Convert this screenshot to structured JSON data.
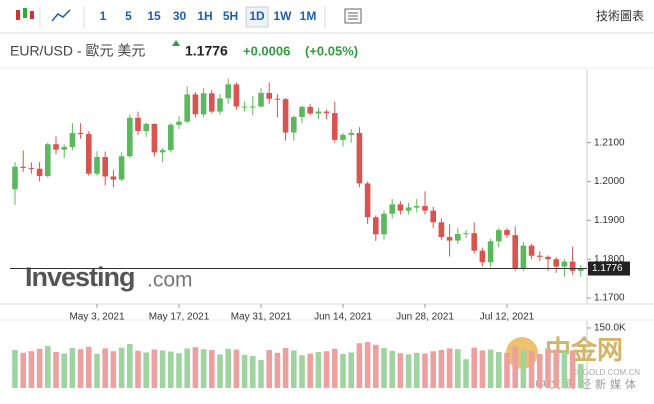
{
  "toolbar": {
    "intervals": [
      "1",
      "5",
      "15",
      "30",
      "1H",
      "5H",
      "1D",
      "1W",
      "1M"
    ],
    "selected": 6,
    "right_link": "技術圖表"
  },
  "header": {
    "title": "EUR/USD - 歐元 美元",
    "price": "1.1776",
    "change": "+0.0006",
    "change_pct": "(+0.05%)"
  },
  "watermarks": {
    "brand": "Investing",
    "brand_suffix": ".com",
    "cn_name": "中金网",
    "cn_url": "CNGOLD.COM.CN",
    "cn_tagline": "中文财经新媒体"
  },
  "chart_data": {
    "type": "candlestick",
    "x": [
      "2021-04-19",
      "2021-04-20",
      "2021-04-21",
      "2021-04-22",
      "2021-04-23",
      "2021-04-26",
      "2021-04-27",
      "2021-04-28",
      "2021-04-29",
      "2021-04-30",
      "2021-05-03",
      "2021-05-04",
      "2021-05-05",
      "2021-05-06",
      "2021-05-07",
      "2021-05-10",
      "2021-05-11",
      "2021-05-12",
      "2021-05-13",
      "2021-05-14",
      "2021-05-17",
      "2021-05-18",
      "2021-05-19",
      "2021-05-20",
      "2021-05-21",
      "2021-05-24",
      "2021-05-25",
      "2021-05-26",
      "2021-05-27",
      "2021-05-28",
      "2021-05-31",
      "2021-06-01",
      "2021-06-02",
      "2021-06-03",
      "2021-06-04",
      "2021-06-07",
      "2021-06-08",
      "2021-06-09",
      "2021-06-10",
      "2021-06-11",
      "2021-06-14",
      "2021-06-15",
      "2021-06-16",
      "2021-06-17",
      "2021-06-18",
      "2021-06-21",
      "2021-06-22",
      "2021-06-23",
      "2021-06-24",
      "2021-06-25",
      "2021-06-28",
      "2021-06-29",
      "2021-06-30",
      "2021-07-01",
      "2021-07-02",
      "2021-07-05",
      "2021-07-06",
      "2021-07-07",
      "2021-07-08",
      "2021-07-09",
      "2021-07-12",
      "2021-07-13",
      "2021-07-14",
      "2021-07-15",
      "2021-07-16",
      "2021-07-19",
      "2021-07-20",
      "2021-07-21",
      "2021-07-22",
      "2021-07-23"
    ],
    "open": [
      1.198,
      1.2038,
      1.2035,
      1.2033,
      1.2014,
      1.2096,
      1.2082,
      1.2089,
      1.2125,
      1.2122,
      1.202,
      1.2063,
      1.2013,
      1.2005,
      1.2065,
      1.2164,
      1.213,
      1.2148,
      1.2075,
      1.2081,
      1.2146,
      1.2154,
      1.2224,
      1.2173,
      1.2227,
      1.218,
      1.2214,
      1.225,
      1.2193,
      1.2193,
      1.2193,
      1.2228,
      1.2213,
      1.2212,
      1.2126,
      1.2166,
      1.2192,
      1.2175,
      1.218,
      1.2176,
      1.2107,
      1.212,
      1.2125,
      1.1995,
      1.1908,
      1.1864,
      1.1917,
      1.1941,
      1.1925,
      1.1933,
      1.1937,
      1.1925,
      1.1895,
      1.1857,
      1.1848,
      1.1865,
      1.1867,
      1.1822,
      1.1792,
      1.1846,
      1.1875,
      1.1862,
      1.1775,
      1.1835,
      1.1809,
      1.1806,
      1.18,
      1.1781,
      1.1794,
      1.177
    ],
    "high": [
      1.205,
      1.208,
      1.2049,
      1.205,
      1.21,
      1.2116,
      1.2095,
      1.215,
      1.215,
      1.213,
      1.2078,
      1.2077,
      1.203,
      1.2075,
      1.2172,
      1.218,
      1.2152,
      1.215,
      1.2086,
      1.215,
      1.2168,
      1.2245,
      1.223,
      1.224,
      1.2236,
      1.2225,
      1.2265,
      1.2255,
      1.2205,
      1.222,
      1.224,
      1.2255,
      1.2225,
      1.2215,
      1.217,
      1.2196,
      1.22,
      1.219,
      1.2185,
      1.2205,
      1.2125,
      1.2135,
      1.214,
      1.2,
      1.1913,
      1.1925,
      1.1955,
      1.195,
      1.1945,
      1.1955,
      1.1975,
      1.1935,
      1.1905,
      1.189,
      1.188,
      1.1875,
      1.1895,
      1.183,
      1.1852,
      1.188,
      1.188,
      1.1885,
      1.1845,
      1.184,
      1.182,
      1.181,
      1.1805,
      1.18,
      1.1832,
      1.1785
    ],
    "low": [
      1.194,
      1.2025,
      1.202,
      1.2,
      1.201,
      1.207,
      1.206,
      1.208,
      1.211,
      1.2015,
      1.2015,
      1.199,
      1.1985,
      1.2,
      1.206,
      1.212,
      1.2115,
      1.2065,
      1.205,
      1.2075,
      1.2135,
      1.215,
      1.2165,
      1.2165,
      1.2175,
      1.2172,
      1.22,
      1.2185,
      1.218,
      1.217,
      1.219,
      1.22,
      1.2165,
      1.2105,
      1.2105,
      1.215,
      1.217,
      1.216,
      1.216,
      1.21,
      1.209,
      1.21,
      1.1985,
      1.1891,
      1.1847,
      1.185,
      1.1905,
      1.1915,
      1.1915,
      1.192,
      1.1915,
      1.188,
      1.185,
      1.1807,
      1.184,
      1.1855,
      1.1815,
      1.1782,
      1.178,
      1.183,
      1.1855,
      1.177,
      1.177,
      1.18,
      1.1795,
      1.177,
      1.1765,
      1.1755,
      1.176,
      1.1755
    ],
    "close": [
      1.2038,
      1.2035,
      1.2033,
      1.2014,
      1.2096,
      1.2082,
      1.2089,
      1.2125,
      1.2122,
      1.202,
      1.2063,
      1.2013,
      1.2005,
      1.2065,
      1.2164,
      1.213,
      1.2148,
      1.2075,
      1.2081,
      1.2146,
      1.2154,
      1.2224,
      1.2173,
      1.2227,
      1.218,
      1.2214,
      1.225,
      1.2193,
      1.2193,
      1.2193,
      1.2228,
      1.2213,
      1.2212,
      1.2126,
      1.2166,
      1.2192,
      1.2175,
      1.218,
      1.2176,
      1.2107,
      1.212,
      1.2125,
      1.1995,
      1.1908,
      1.1864,
      1.1917,
      1.1941,
      1.1925,
      1.1933,
      1.1937,
      1.1925,
      1.1895,
      1.1857,
      1.1848,
      1.1865,
      1.1867,
      1.1822,
      1.1792,
      1.1846,
      1.1875,
      1.1862,
      1.1775,
      1.1835,
      1.1809,
      1.1806,
      1.18,
      1.1781,
      1.1794,
      1.177,
      1.1776
    ],
    "volume": [
      95000,
      88000,
      92000,
      98000,
      105000,
      90000,
      86000,
      100000,
      97000,
      103000,
      85000,
      99000,
      92000,
      101000,
      110000,
      93000,
      89000,
      96000,
      94000,
      91000,
      87000,
      99000,
      102000,
      97000,
      95000,
      84000,
      98000,
      96000,
      83000,
      80000,
      70000,
      95000,
      88000,
      100000,
      94000,
      82000,
      86000,
      90000,
      92000,
      98000,
      85000,
      89000,
      112000,
      115000,
      108000,
      100000,
      93000,
      87000,
      84000,
      88000,
      86000,
      92000,
      95000,
      99000,
      97000,
      72000,
      101000,
      94000,
      96000,
      90000,
      88000,
      104000,
      97000,
      93000,
      85000,
      99000,
      96000,
      90000,
      94000,
      60000
    ],
    "ylim": [
      1.1695,
      1.2287
    ],
    "yticks": [
      {
        "value": 1.17,
        "label": "1.1700"
      },
      {
        "value": 1.18,
        "label": "1.1800"
      },
      {
        "value": 1.19,
        "label": "1.1900"
      },
      {
        "value": 1.2,
        "label": "1.2000"
      },
      {
        "value": 1.21,
        "label": "1.2100"
      }
    ],
    "xticks": [
      {
        "value": "2021-05-03",
        "label": "May 3, 2021"
      },
      {
        "value": "2021-05-17",
        "label": "May 17, 2021"
      },
      {
        "value": "2021-05-31",
        "label": "May 31, 2021"
      },
      {
        "value": "2021-06-14",
        "label": "Jun 14, 2021"
      },
      {
        "value": "2021-06-28",
        "label": "Jun 28, 2021"
      },
      {
        "value": "2021-07-12",
        "label": "Jul 12, 2021"
      }
    ],
    "volume_lim": [
      0,
      150000
    ],
    "volume_ticks": [
      {
        "value": 150000,
        "label": "150.0K"
      }
    ],
    "grid": false,
    "up_color": "#5cb85c",
    "down_color": "#d9534f",
    "volume_up_color": "#9fd3a0",
    "volume_down_color": "#eca0a0"
  }
}
